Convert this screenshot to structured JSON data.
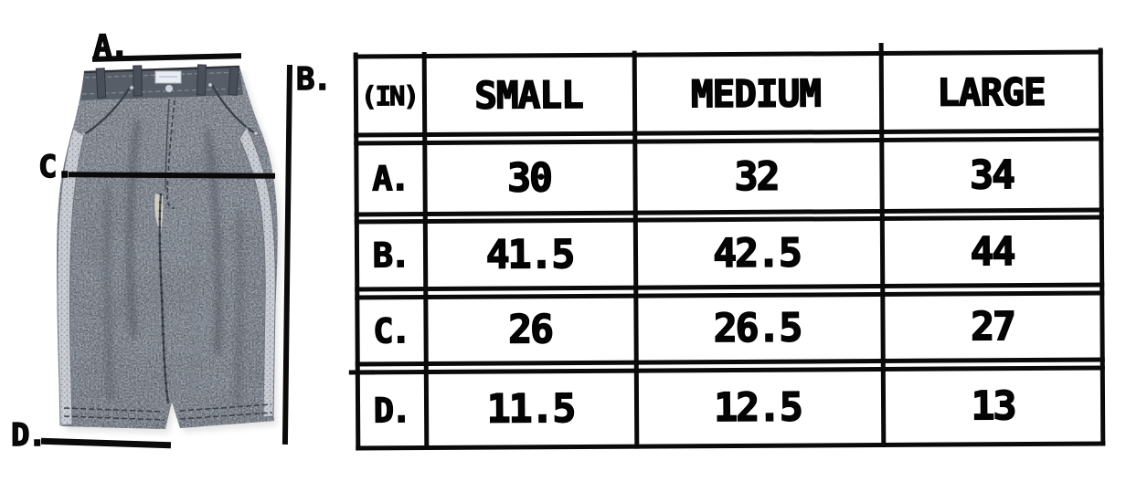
{
  "figure": {
    "image": "grey-washed-denim-wide-leg-pants",
    "annotations": [
      {
        "id": "A",
        "label": "A."
      },
      {
        "id": "B",
        "label": "B."
      },
      {
        "id": "C",
        "label": "C."
      },
      {
        "id": "D",
        "label": "D."
      }
    ]
  },
  "table": {
    "unit_header": "(IN)",
    "columns": [
      "SMALL",
      "MEDIUM",
      "LARGE"
    ],
    "rows": [
      {
        "label": "A.",
        "values": [
          "30",
          "32",
          "34"
        ]
      },
      {
        "label": "B.",
        "values": [
          "41.5",
          "42.5",
          "44"
        ]
      },
      {
        "label": "C.",
        "values": [
          "26",
          "26.5",
          "27"
        ]
      },
      {
        "label": "D.",
        "values": [
          "11.5",
          "12.5",
          "13"
        ]
      }
    ]
  },
  "chart_data": {
    "type": "table",
    "columns": [
      "(IN)",
      "SMALL",
      "MEDIUM",
      "LARGE"
    ],
    "rows": [
      [
        "A.",
        "30",
        "32",
        "34"
      ],
      [
        "B.",
        "41.5",
        "42.5",
        "44"
      ],
      [
        "C.",
        "26",
        "26.5",
        "27"
      ],
      [
        "D.",
        "11.5",
        "12.5",
        "13"
      ]
    ]
  },
  "colors": {
    "border": "#0a0a0a",
    "background": "#ffffff",
    "denim_dark": "#4e545d",
    "denim_light": "#636972",
    "side_trim": "#c6c9cf",
    "annotation": "#0a0a0a"
  }
}
